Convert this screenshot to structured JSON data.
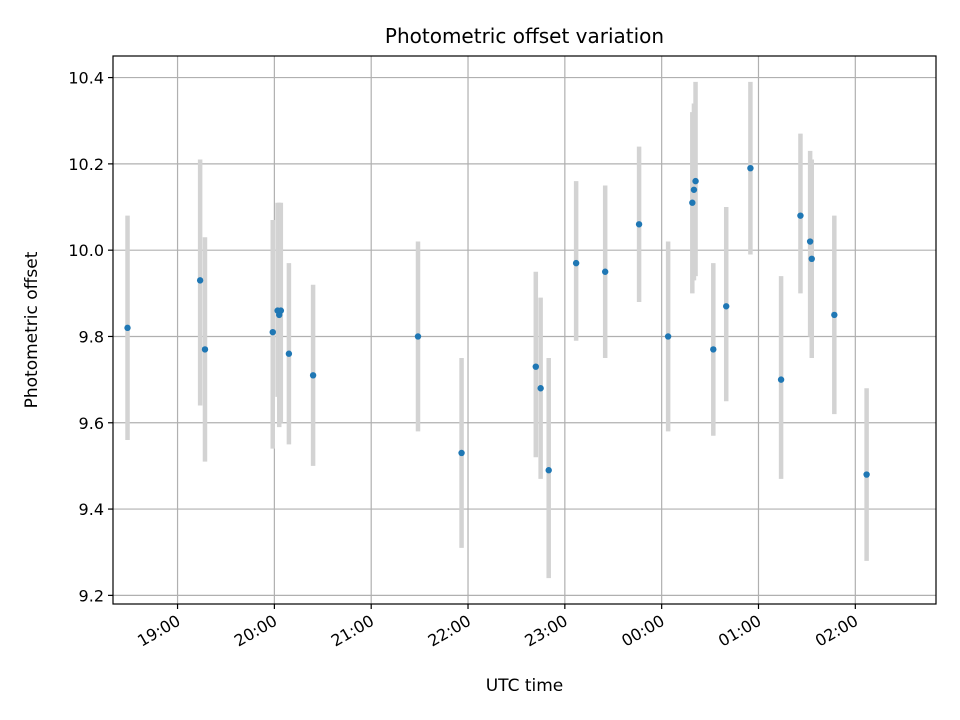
{
  "chart_data": {
    "type": "scatter",
    "title": "Photometric offset variation",
    "xlabel": "UTC time",
    "ylabel": "Photometric offset",
    "x_ticks": [
      {
        "value": "19:00",
        "label": "19:00"
      },
      {
        "value": "20:00",
        "label": "20:00"
      },
      {
        "value": "21:00",
        "label": "21:00"
      },
      {
        "value": "22:00",
        "label": "22:00"
      },
      {
        "value": "23:00",
        "label": "23:00"
      },
      {
        "value": "00:00",
        "label": "00:00"
      },
      {
        "value": "01:00",
        "label": "01:00"
      },
      {
        "value": "02:00",
        "label": "02:00"
      }
    ],
    "y_ticks": [
      9.2,
      9.4,
      9.6,
      9.8,
      10.0,
      10.2,
      10.4
    ],
    "xlim": [
      "18:20",
      "02:50"
    ],
    "ylim": [
      9.18,
      10.45
    ],
    "grid": true,
    "colors": {
      "point": "#1f77b4",
      "errorbar": "#d3d3d3",
      "grid": "#b0b0b0"
    },
    "points": [
      {
        "x": "18:29",
        "y": 9.82,
        "lo": 9.56,
        "hi": 10.08
      },
      {
        "x": "19:14",
        "y": 9.93,
        "lo": 9.64,
        "hi": 10.21
      },
      {
        "x": "19:17",
        "y": 9.77,
        "lo": 9.51,
        "hi": 10.03
      },
      {
        "x": "19:59",
        "y": 9.81,
        "lo": 9.54,
        "hi": 10.07
      },
      {
        "x": "20:02",
        "y": 9.86,
        "lo": 9.66,
        "hi": 10.11
      },
      {
        "x": "20:03",
        "y": 9.85,
        "lo": 9.59,
        "hi": 10.11
      },
      {
        "x": "20:04",
        "y": 9.86,
        "lo": 9.6,
        "hi": 10.11
      },
      {
        "x": "20:09",
        "y": 9.76,
        "lo": 9.55,
        "hi": 9.97
      },
      {
        "x": "20:24",
        "y": 9.71,
        "lo": 9.5,
        "hi": 9.92
      },
      {
        "x": "21:29",
        "y": 9.8,
        "lo": 9.58,
        "hi": 10.02
      },
      {
        "x": "21:56",
        "y": 9.53,
        "lo": 9.31,
        "hi": 9.75
      },
      {
        "x": "22:42",
        "y": 9.73,
        "lo": 9.52,
        "hi": 9.95
      },
      {
        "x": "22:45",
        "y": 9.68,
        "lo": 9.47,
        "hi": 9.89
      },
      {
        "x": "22:50",
        "y": 9.49,
        "lo": 9.24,
        "hi": 9.75
      },
      {
        "x": "23:07",
        "y": 9.97,
        "lo": 9.79,
        "hi": 10.16
      },
      {
        "x": "23:25",
        "y": 9.95,
        "lo": 9.75,
        "hi": 10.15
      },
      {
        "x": "23:46",
        "y": 10.06,
        "lo": 9.88,
        "hi": 10.24
      },
      {
        "x": "00:04",
        "y": 9.8,
        "lo": 9.58,
        "hi": 10.02
      },
      {
        "x": "00:19",
        "y": 10.11,
        "lo": 9.9,
        "hi": 10.32
      },
      {
        "x": "00:20",
        "y": 10.14,
        "lo": 9.93,
        "hi": 10.34
      },
      {
        "x": "00:21",
        "y": 10.16,
        "lo": 9.94,
        "hi": 10.39
      },
      {
        "x": "00:32",
        "y": 9.77,
        "lo": 9.57,
        "hi": 9.97
      },
      {
        "x": "00:40",
        "y": 9.87,
        "lo": 9.65,
        "hi": 10.1
      },
      {
        "x": "00:55",
        "y": 10.19,
        "lo": 9.99,
        "hi": 10.39
      },
      {
        "x": "01:14",
        "y": 9.7,
        "lo": 9.47,
        "hi": 9.94
      },
      {
        "x": "01:26",
        "y": 10.08,
        "lo": 9.9,
        "hi": 10.27
      },
      {
        "x": "01:32",
        "y": 10.02,
        "lo": 9.8,
        "hi": 10.23
      },
      {
        "x": "01:33",
        "y": 9.98,
        "lo": 9.75,
        "hi": 10.21
      },
      {
        "x": "01:47",
        "y": 9.85,
        "lo": 9.62,
        "hi": 10.08
      },
      {
        "x": "02:07",
        "y": 9.48,
        "lo": 9.28,
        "hi": 9.68
      }
    ]
  }
}
